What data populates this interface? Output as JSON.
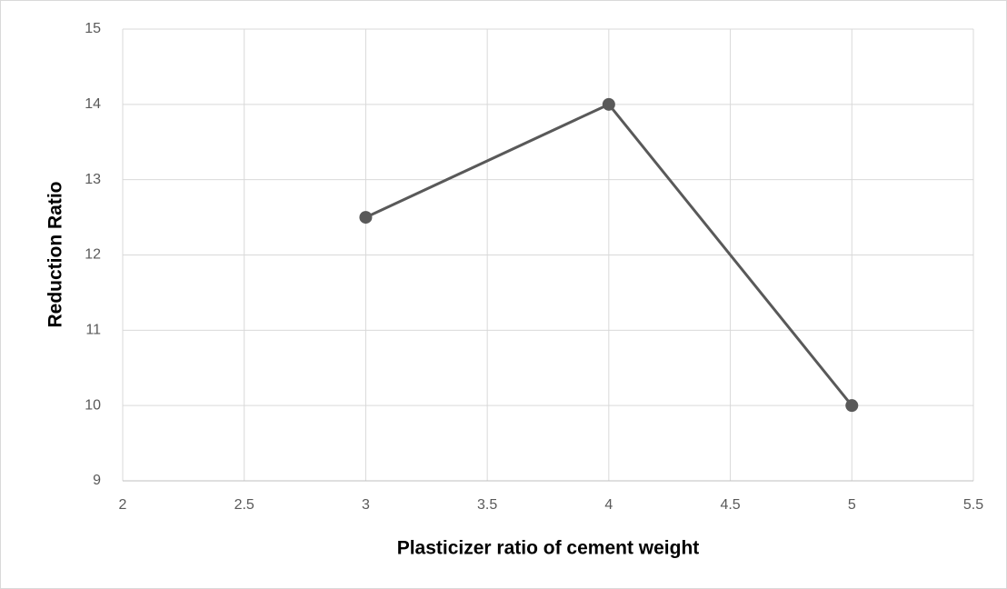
{
  "chart_data": {
    "type": "line",
    "x_label": "Plasticizer ratio of cement weight",
    "y_label": "Reduction Ratio",
    "x": [
      3,
      4,
      5
    ],
    "values": [
      12.5,
      14,
      10
    ],
    "color": "#595959",
    "xlim": [
      2,
      5.5
    ],
    "xticks": [
      2,
      2.5,
      3,
      3.5,
      4,
      4.5,
      5,
      5.5
    ],
    "ylim": [
      9,
      15
    ],
    "yticks": [
      9,
      10,
      11,
      12,
      13,
      14,
      15
    ],
    "grid": true,
    "markers": true
  }
}
